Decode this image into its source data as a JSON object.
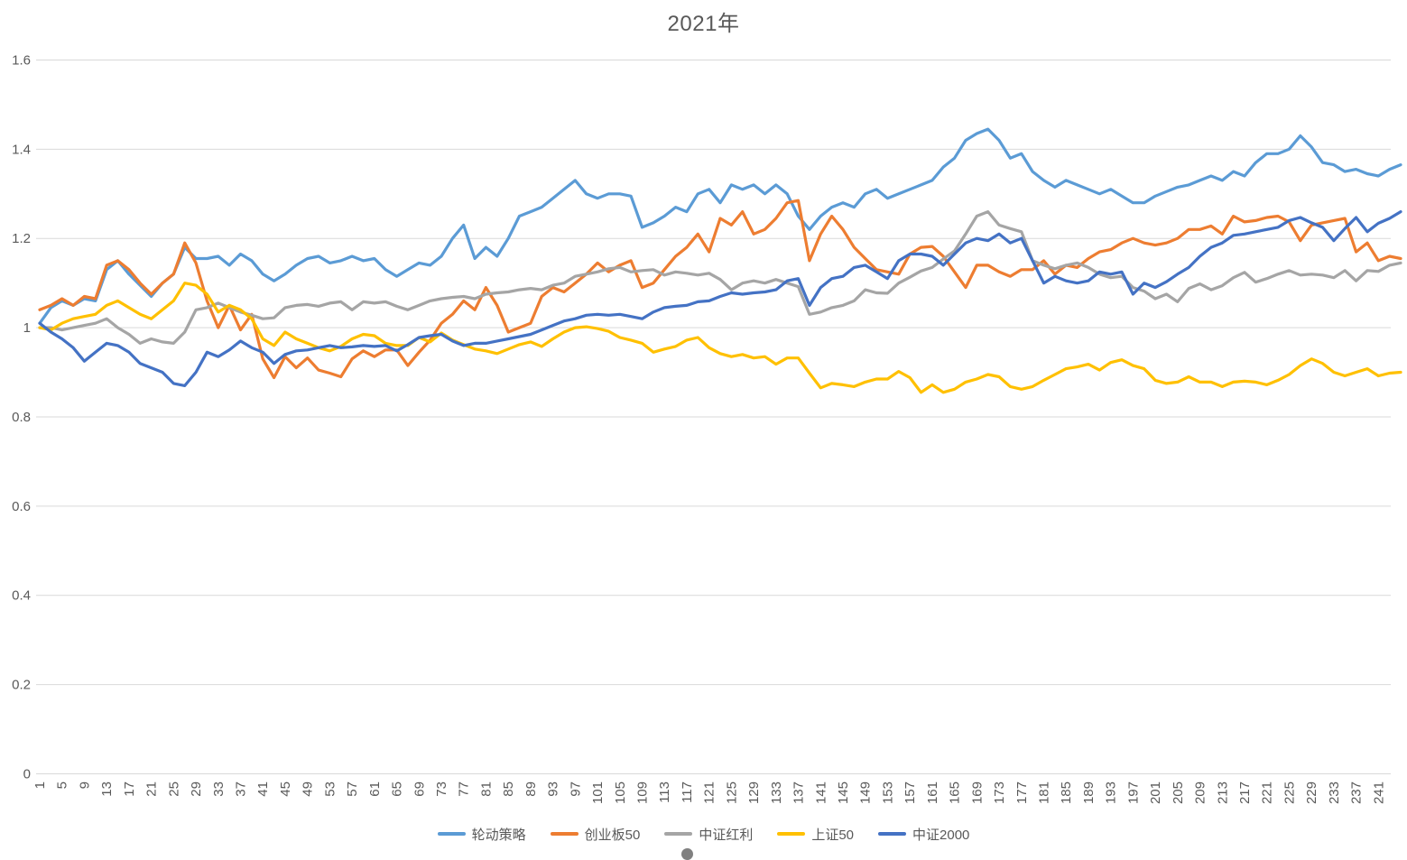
{
  "page": {
    "background": "#FFFFFF",
    "text_color": "#595959",
    "grid_color": "#D9D9D9"
  },
  "chart_data": {
    "type": "line",
    "title": "2021年",
    "legend_position": "bottom",
    "grid": true,
    "x_axis": {
      "label_rotation_deg": -90,
      "tick_labels": [
        "1",
        "5",
        "9",
        "13",
        "17",
        "21",
        "25",
        "29",
        "33",
        "37",
        "41",
        "45",
        "49",
        "53",
        "57",
        "61",
        "65",
        "69",
        "73",
        "77",
        "81",
        "85",
        "89",
        "93",
        "97",
        "101",
        "105",
        "109",
        "113",
        "117",
        "121",
        "125",
        "129",
        "133",
        "137",
        "141",
        "145",
        "149",
        "153",
        "157",
        "161",
        "165",
        "169",
        "173",
        "177",
        "181",
        "185",
        "189",
        "193",
        "197",
        "201",
        "205",
        "209",
        "213",
        "217",
        "221",
        "225",
        "229",
        "233",
        "237",
        "241"
      ],
      "tick_start": 1,
      "tick_step": 4
    },
    "y_axis": {
      "min": 0,
      "max": 1.6,
      "step": 0.2,
      "tick_labels": [
        "0",
        "0.2",
        "0.4",
        "0.6",
        "0.8",
        "1",
        "1.2",
        "1.4",
        "1.6"
      ]
    },
    "x_points_start": 1,
    "x_points_step": 2,
    "series": [
      {
        "name": "轮动策略",
        "color": "#5B9BD5",
        "values": [
          1.01,
          1.045,
          1.06,
          1.05,
          1.065,
          1.06,
          1.13,
          1.15,
          1.12,
          1.095,
          1.07,
          1.1,
          1.12,
          1.18,
          1.155,
          1.155,
          1.16,
          1.14,
          1.165,
          1.15,
          1.12,
          1.105,
          1.12,
          1.14,
          1.155,
          1.16,
          1.145,
          1.15,
          1.16,
          1.15,
          1.155,
          1.13,
          1.115,
          1.13,
          1.145,
          1.14,
          1.16,
          1.2,
          1.23,
          1.155,
          1.18,
          1.16,
          1.2,
          1.25,
          1.26,
          1.27,
          1.29,
          1.31,
          1.33,
          1.3,
          1.29,
          1.3,
          1.3,
          1.295,
          1.225,
          1.235,
          1.25,
          1.27,
          1.26,
          1.3,
          1.31,
          1.28,
          1.32,
          1.31,
          1.32,
          1.3,
          1.32,
          1.3,
          1.25,
          1.22,
          1.25,
          1.27,
          1.28,
          1.27,
          1.3,
          1.31,
          1.29,
          1.3,
          1.31,
          1.32,
          1.33,
          1.36,
          1.38,
          1.42,
          1.435,
          1.445,
          1.42,
          1.38,
          1.39,
          1.35,
          1.33,
          1.315,
          1.33,
          1.32,
          1.31,
          1.3,
          1.31,
          1.295,
          1.28,
          1.28,
          1.295,
          1.305,
          1.315,
          1.32,
          1.33,
          1.34,
          1.33,
          1.35,
          1.34,
          1.37,
          1.39,
          1.39,
          1.4,
          1.43,
          1.405,
          1.37,
          1.365,
          1.35,
          1.355,
          1.345,
          1.34,
          1.355,
          1.365
        ]
      },
      {
        "name": "创业板50",
        "color": "#ED7D31",
        "values": [
          1.04,
          1.05,
          1.065,
          1.05,
          1.07,
          1.065,
          1.14,
          1.15,
          1.13,
          1.1,
          1.075,
          1.1,
          1.12,
          1.19,
          1.145,
          1.06,
          1.0,
          1.05,
          0.995,
          1.03,
          0.93,
          0.888,
          0.935,
          0.91,
          0.932,
          0.905,
          0.898,
          0.89,
          0.93,
          0.948,
          0.935,
          0.95,
          0.95,
          0.915,
          0.945,
          0.972,
          1.01,
          1.03,
          1.06,
          1.04,
          1.09,
          1.05,
          0.99,
          1.0,
          1.01,
          1.07,
          1.09,
          1.08,
          1.1,
          1.12,
          1.145,
          1.125,
          1.14,
          1.15,
          1.09,
          1.1,
          1.13,
          1.16,
          1.18,
          1.21,
          1.17,
          1.245,
          1.23,
          1.26,
          1.21,
          1.22,
          1.245,
          1.28,
          1.285,
          1.15,
          1.21,
          1.25,
          1.22,
          1.18,
          1.155,
          1.13,
          1.125,
          1.12,
          1.165,
          1.18,
          1.182,
          1.16,
          1.125,
          1.09,
          1.14,
          1.14,
          1.125,
          1.115,
          1.13,
          1.13,
          1.15,
          1.12,
          1.14,
          1.135,
          1.155,
          1.17,
          1.175,
          1.19,
          1.2,
          1.19,
          1.185,
          1.19,
          1.2,
          1.22,
          1.22,
          1.228,
          1.21,
          1.25,
          1.237,
          1.24,
          1.247,
          1.25,
          1.237,
          1.195,
          1.23,
          1.235,
          1.24,
          1.245,
          1.17,
          1.19,
          1.15,
          1.16,
          1.155
        ]
      },
      {
        "name": "中证红利",
        "color": "#A5A5A5",
        "values": [
          1.0,
          1.0,
          0.995,
          1.0,
          1.005,
          1.01,
          1.02,
          1.0,
          0.985,
          0.965,
          0.975,
          0.968,
          0.965,
          0.99,
          1.04,
          1.045,
          1.055,
          1.045,
          1.035,
          1.028,
          1.02,
          1.022,
          1.045,
          1.05,
          1.052,
          1.048,
          1.055,
          1.058,
          1.04,
          1.058,
          1.055,
          1.058,
          1.048,
          1.04,
          1.05,
          1.06,
          1.065,
          1.068,
          1.07,
          1.065,
          1.075,
          1.078,
          1.08,
          1.085,
          1.088,
          1.085,
          1.095,
          1.1,
          1.115,
          1.12,
          1.125,
          1.132,
          1.135,
          1.125,
          1.128,
          1.13,
          1.118,
          1.125,
          1.122,
          1.118,
          1.122,
          1.108,
          1.085,
          1.1,
          1.105,
          1.1,
          1.108,
          1.1,
          1.092,
          1.03,
          1.035,
          1.045,
          1.05,
          1.06,
          1.085,
          1.078,
          1.077,
          1.1,
          1.113,
          1.127,
          1.135,
          1.154,
          1.172,
          1.21,
          1.25,
          1.26,
          1.23,
          1.222,
          1.215,
          1.15,
          1.14,
          1.132,
          1.14,
          1.145,
          1.135,
          1.12,
          1.112,
          1.115,
          1.09,
          1.082,
          1.065,
          1.075,
          1.058,
          1.088,
          1.098,
          1.085,
          1.094,
          1.112,
          1.124,
          1.102,
          1.11,
          1.12,
          1.128,
          1.118,
          1.12,
          1.118,
          1.112,
          1.128,
          1.105,
          1.128,
          1.126,
          1.14,
          1.145
        ]
      },
      {
        "name": "上证50",
        "color": "#FFC000",
        "values": [
          1.0,
          0.995,
          1.01,
          1.02,
          1.025,
          1.03,
          1.05,
          1.06,
          1.045,
          1.03,
          1.02,
          1.04,
          1.06,
          1.1,
          1.095,
          1.075,
          1.035,
          1.05,
          1.04,
          1.02,
          0.975,
          0.96,
          0.99,
          0.975,
          0.965,
          0.955,
          0.948,
          0.958,
          0.975,
          0.985,
          0.982,
          0.965,
          0.96,
          0.96,
          0.978,
          0.968,
          0.988,
          0.972,
          0.962,
          0.952,
          0.948,
          0.942,
          0.952,
          0.962,
          0.968,
          0.958,
          0.975,
          0.99,
          1.0,
          1.002,
          0.998,
          0.992,
          0.978,
          0.972,
          0.965,
          0.945,
          0.952,
          0.958,
          0.972,
          0.978,
          0.955,
          0.942,
          0.935,
          0.94,
          0.932,
          0.935,
          0.918,
          0.932,
          0.932,
          0.898,
          0.865,
          0.875,
          0.872,
          0.868,
          0.878,
          0.885,
          0.885,
          0.902,
          0.888,
          0.855,
          0.872,
          0.855,
          0.862,
          0.878,
          0.885,
          0.895,
          0.89,
          0.868,
          0.862,
          0.868,
          0.882,
          0.895,
          0.908,
          0.912,
          0.918,
          0.905,
          0.922,
          0.928,
          0.915,
          0.908,
          0.882,
          0.875,
          0.878,
          0.89,
          0.878,
          0.878,
          0.868,
          0.878,
          0.88,
          0.878,
          0.872,
          0.882,
          0.895,
          0.915,
          0.93,
          0.92,
          0.9,
          0.892,
          0.9,
          0.908,
          0.892,
          0.898,
          0.9
        ]
      },
      {
        "name": "中证2000",
        "color": "#4472C4",
        "values": [
          1.01,
          0.99,
          0.975,
          0.955,
          0.925,
          0.945,
          0.965,
          0.96,
          0.945,
          0.92,
          0.91,
          0.9,
          0.875,
          0.87,
          0.9,
          0.945,
          0.935,
          0.95,
          0.97,
          0.955,
          0.945,
          0.92,
          0.94,
          0.948,
          0.95,
          0.955,
          0.96,
          0.955,
          0.957,
          0.96,
          0.958,
          0.96,
          0.948,
          0.962,
          0.978,
          0.982,
          0.985,
          0.97,
          0.96,
          0.965,
          0.965,
          0.97,
          0.975,
          0.98,
          0.985,
          0.995,
          1.005,
          1.015,
          1.02,
          1.028,
          1.03,
          1.028,
          1.03,
          1.025,
          1.02,
          1.035,
          1.045,
          1.048,
          1.05,
          1.058,
          1.06,
          1.07,
          1.078,
          1.075,
          1.078,
          1.08,
          1.085,
          1.105,
          1.11,
          1.05,
          1.09,
          1.11,
          1.115,
          1.135,
          1.14,
          1.125,
          1.11,
          1.15,
          1.165,
          1.165,
          1.16,
          1.14,
          1.165,
          1.19,
          1.2,
          1.195,
          1.21,
          1.19,
          1.2,
          1.15,
          1.1,
          1.115,
          1.105,
          1.1,
          1.105,
          1.125,
          1.12,
          1.125,
          1.075,
          1.1,
          1.09,
          1.103,
          1.12,
          1.135,
          1.16,
          1.18,
          1.19,
          1.207,
          1.21,
          1.215,
          1.22,
          1.225,
          1.24,
          1.247,
          1.235,
          1.225,
          1.195,
          1.222,
          1.247,
          1.215,
          1.234,
          1.245,
          1.26
        ]
      }
    ]
  },
  "decorations": {
    "partial_circle_color": "#808080"
  }
}
